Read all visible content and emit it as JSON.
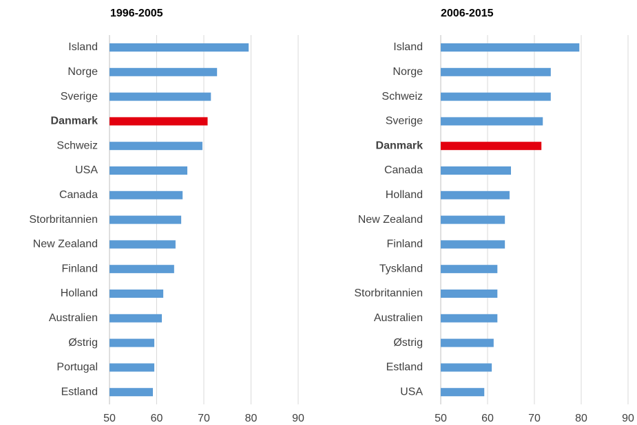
{
  "chart_data": [
    {
      "type": "bar",
      "orientation": "horizontal",
      "title": "1996-2005",
      "categories": [
        "Island",
        "Norge",
        "Sverige",
        "Danmark",
        "Schweiz",
        "USA",
        "Canada",
        "Storbritannien",
        "New Zealand",
        "Finland",
        "Holland",
        "Australien",
        "Østrig",
        "Portugal",
        "Estland"
      ],
      "values": [
        79.5,
        72.8,
        71.5,
        70.8,
        69.7,
        66.5,
        65.5,
        65.2,
        64.0,
        63.7,
        61.4,
        61.1,
        59.5,
        59.5,
        59.2
      ],
      "color": "#5b9bd5",
      "highlight_color": "#e3000f",
      "highlight": [
        3
      ],
      "xlim": [
        50,
        90
      ],
      "xticks": [
        50,
        60,
        70,
        80,
        90
      ],
      "grid": true
    },
    {
      "type": "bar",
      "orientation": "horizontal",
      "title": "2006-2015",
      "categories": [
        "Island",
        "Norge",
        "Schweiz",
        "Sverige",
        "Danmark",
        "Canada",
        "Holland",
        "New Zealand",
        "Finland",
        "Tyskland",
        "Storbritannien",
        "Australien",
        "Østrig",
        "Estland",
        "USA"
      ],
      "values": [
        79.6,
        73.5,
        73.5,
        71.8,
        71.5,
        65.0,
        64.7,
        63.7,
        63.7,
        62.1,
        62.1,
        62.1,
        61.3,
        60.9,
        59.3
      ],
      "color": "#5b9bd5",
      "highlight_color": "#e3000f",
      "highlight": [
        4
      ],
      "xlim": [
        50,
        90
      ],
      "xticks": [
        50,
        60,
        70,
        80,
        90
      ],
      "grid": true
    }
  ]
}
